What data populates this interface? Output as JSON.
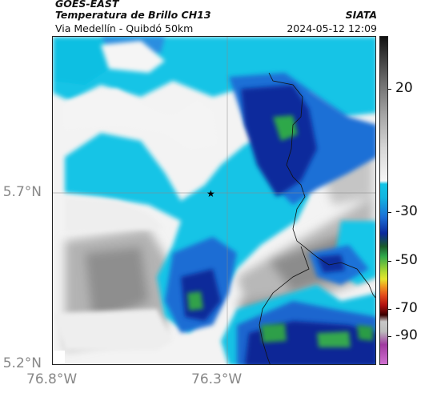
{
  "header": {
    "line1": "GOES-EAST",
    "title": "Temperatura de Brillo CH13",
    "route": "Via Medellín - Quibdó 50km",
    "org": "SIATA",
    "timestamp": "2024-05-12 12:09"
  },
  "map": {
    "lat_labels": [
      "5.7°N",
      "5.2°N"
    ],
    "lon_labels": [
      "76.8°W",
      "76.3°W"
    ],
    "marker": "star-marker"
  },
  "colorbar": {
    "ticks": [
      "20",
      "-30",
      "-50",
      "-70",
      "-90"
    ]
  },
  "colors": {
    "cold_cloud_dark": "#0a1f8c",
    "cold_cloud_mid": "#1d5cc9",
    "cyan": "#11c9e9",
    "green": "#2fa84a",
    "clear_light": "#f0f0f0",
    "clear_gray": "#9a9a9a"
  }
}
